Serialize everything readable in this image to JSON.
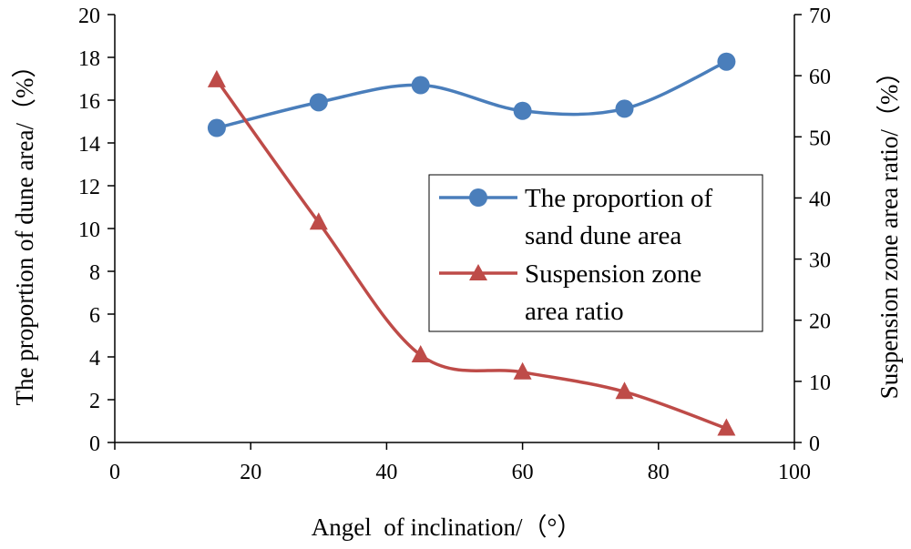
{
  "chart_data": {
    "type": "line",
    "title": "",
    "xlabel": "Angel  of inclination/（°）",
    "ylabel_left": "The proportion of dune area/（%）",
    "ylabel_right": "Suspension zone area ratio/（%）",
    "xlim": [
      0,
      100
    ],
    "ylim_left": [
      0,
      20
    ],
    "ylim_right": [
      0,
      70
    ],
    "xticks": [
      "0",
      "20",
      "40",
      "60",
      "80",
      "100"
    ],
    "yticks_left": [
      "0",
      "2",
      "4",
      "6",
      "8",
      "10",
      "12",
      "14",
      "16",
      "18",
      "20"
    ],
    "yticks_right": [
      "0",
      "10",
      "20",
      "30",
      "40",
      "50",
      "60",
      "70"
    ],
    "grid": false,
    "legend_position": "center-right",
    "series": [
      {
        "name": "The proportion of sand dune area",
        "legend_lines": [
          "The proportion of",
          "sand dune area"
        ],
        "axis": "left",
        "marker": "circle",
        "color": "#4a7ebb",
        "x": [
          15,
          30,
          45,
          60,
          75,
          90
        ],
        "y": [
          14.7,
          15.9,
          16.7,
          15.5,
          15.6,
          17.8
        ]
      },
      {
        "name": "Suspension zone area ratio",
        "legend_lines": [
          "Suspension zone",
          "area ratio"
        ],
        "axis": "right",
        "marker": "triangle",
        "color": "#be4b48",
        "x": [
          15,
          30,
          45,
          60,
          75,
          90
        ],
        "y": [
          59.3,
          36.0,
          14.3,
          11.5,
          8.3,
          2.3
        ]
      }
    ]
  }
}
